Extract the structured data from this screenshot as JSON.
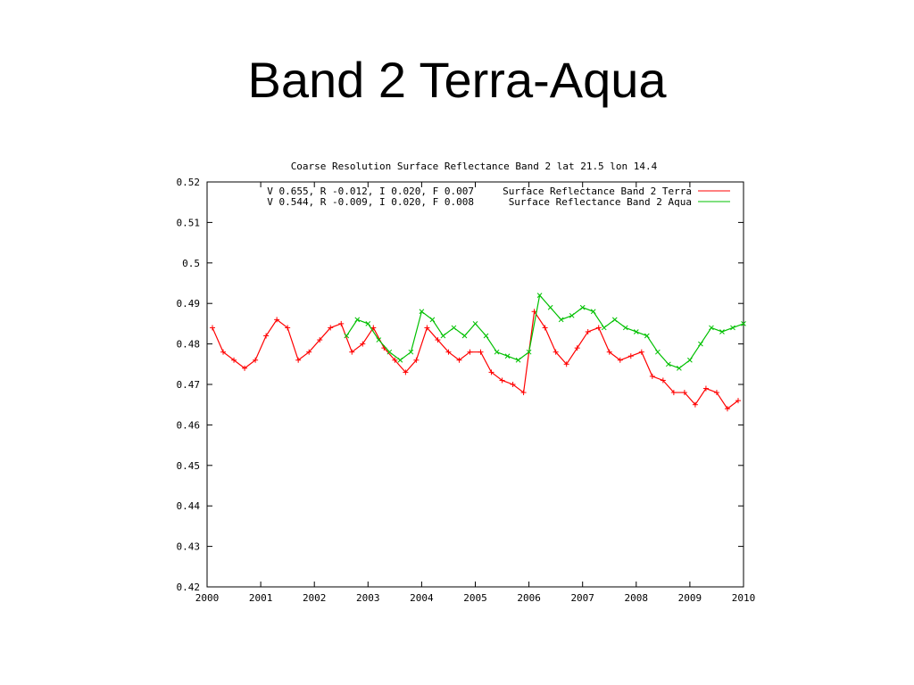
{
  "slide": {
    "title": "Band 2 Terra-Aqua"
  },
  "chart_data": {
    "type": "line",
    "title": "Coarse Resolution Surface Reflectance Band 2 lat 21.5 lon 14.4",
    "xlim": [
      2000,
      2010
    ],
    "ylim": [
      0.42,
      0.52
    ],
    "x_ticks": [
      "2000",
      "2001",
      "2002",
      "2003",
      "2004",
      "2005",
      "2006",
      "2007",
      "2008",
      "2009",
      "2010"
    ],
    "y_ticks": [
      "0.42",
      "0.43",
      "0.44",
      "0.45",
      "0.46",
      "0.47",
      "0.48",
      "0.49",
      "0.5",
      "0.51",
      "0.52"
    ],
    "grid": false,
    "legend_position": "top-right",
    "series": [
      {
        "name": "Surface Reflectance Band 2 Terra",
        "stats": "V 0.655, R -0.012, I 0.020, F 0.007",
        "color": "#ff0000",
        "marker": "plus",
        "x": [
          2000.1,
          2000.3,
          2000.5,
          2000.7,
          2000.9,
          2001.1,
          2001.3,
          2001.5,
          2001.7,
          2001.9,
          2002.1,
          2002.3,
          2002.5,
          2002.7,
          2002.9,
          2003.1,
          2003.3,
          2003.5,
          2003.7,
          2003.9,
          2004.1,
          2004.3,
          2004.5,
          2004.7,
          2004.9,
          2005.1,
          2005.3,
          2005.5,
          2005.7,
          2005.9,
          2006.1,
          2006.3,
          2006.5,
          2006.7,
          2006.9,
          2007.1,
          2007.3,
          2007.5,
          2007.7,
          2007.9,
          2008.1,
          2008.3,
          2008.5,
          2008.7,
          2008.9,
          2009.1,
          2009.3,
          2009.5,
          2009.7,
          2009.9
        ],
        "y": [
          0.484,
          0.478,
          0.476,
          0.474,
          0.476,
          0.482,
          0.486,
          0.484,
          0.476,
          0.478,
          0.481,
          0.484,
          0.485,
          0.478,
          0.48,
          0.484,
          0.479,
          0.476,
          0.473,
          0.476,
          0.484,
          0.481,
          0.478,
          0.476,
          0.478,
          0.478,
          0.473,
          0.471,
          0.47,
          0.468,
          0.488,
          0.484,
          0.478,
          0.475,
          0.479,
          0.483,
          0.484,
          0.478,
          0.476,
          0.477,
          0.478,
          0.472,
          0.471,
          0.468,
          0.468,
          0.465,
          0.469,
          0.468,
          0.464,
          0.466
        ]
      },
      {
        "name": "Surface Reflectance Band 2 Aqua",
        "stats": "V 0.544, R -0.009, I 0.020, F 0.008",
        "color": "#00c000",
        "marker": "cross",
        "x": [
          2002.6,
          2002.8,
          2003.0,
          2003.2,
          2003.4,
          2003.6,
          2003.8,
          2004.0,
          2004.2,
          2004.4,
          2004.6,
          2004.8,
          2005.0,
          2005.2,
          2005.4,
          2005.6,
          2005.8,
          2006.0,
          2006.2,
          2006.4,
          2006.6,
          2006.8,
          2007.0,
          2007.2,
          2007.4,
          2007.6,
          2007.8,
          2008.0,
          2008.2,
          2008.4,
          2008.6,
          2008.8,
          2009.0,
          2009.2,
          2009.4,
          2009.6,
          2009.8,
          2010.0
        ],
        "y": [
          0.482,
          0.486,
          0.485,
          0.481,
          0.478,
          0.476,
          0.478,
          0.488,
          0.486,
          0.482,
          0.484,
          0.482,
          0.485,
          0.482,
          0.478,
          0.477,
          0.476,
          0.478,
          0.492,
          0.489,
          0.486,
          0.487,
          0.489,
          0.488,
          0.484,
          0.486,
          0.484,
          0.483,
          0.482,
          0.478,
          0.475,
          0.474,
          0.476,
          0.48,
          0.484,
          0.483,
          0.484,
          0.485
        ]
      }
    ]
  }
}
